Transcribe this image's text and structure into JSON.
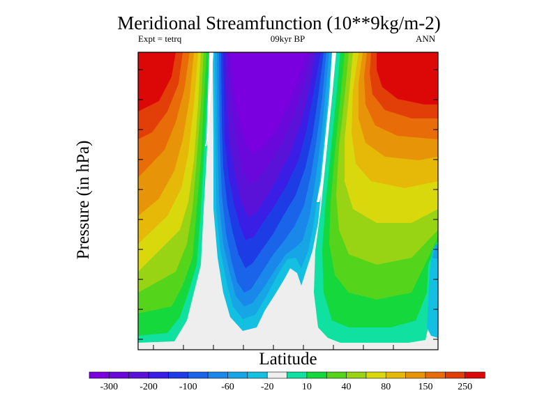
{
  "chart_data": {
    "type": "contour",
    "title": "Meridional Streamfunction (10**9kg/m-2)",
    "subtitle_left": "Expt = tetrq",
    "subtitle_center": "09kyr BP",
    "subtitle_right": "ANN",
    "xlabel": "Latitude",
    "ylabel": "Pressure (in hPa)",
    "colorbar": {
      "colors": [
        "#7a00e0",
        "#6a08dc",
        "#5a12d8",
        "#3b1ee6",
        "#1e3ce6",
        "#1a64ea",
        "#1a88ea",
        "#16a6e6",
        "#14c0e2",
        "#eeeeee",
        "#10e0a0",
        "#14d83c",
        "#54d41a",
        "#98d414",
        "#d8d80c",
        "#e6b808",
        "#e89408",
        "#e86c08",
        "#e23e08",
        "#dc0808"
      ],
      "tick_labels": [
        "-300",
        "-200",
        "-100",
        "-60",
        "-20",
        "10",
        "40",
        "80",
        "150",
        "250"
      ]
    },
    "regions": [
      {
        "name": "north-mid-lat-cell",
        "sign": "positive",
        "peak_level": 250
      },
      {
        "name": "tropical-cell",
        "sign": "negative",
        "peak_level": -300
      },
      {
        "name": "south-mid-lat-cell",
        "sign": "positive",
        "peak_level": 250
      }
    ]
  }
}
